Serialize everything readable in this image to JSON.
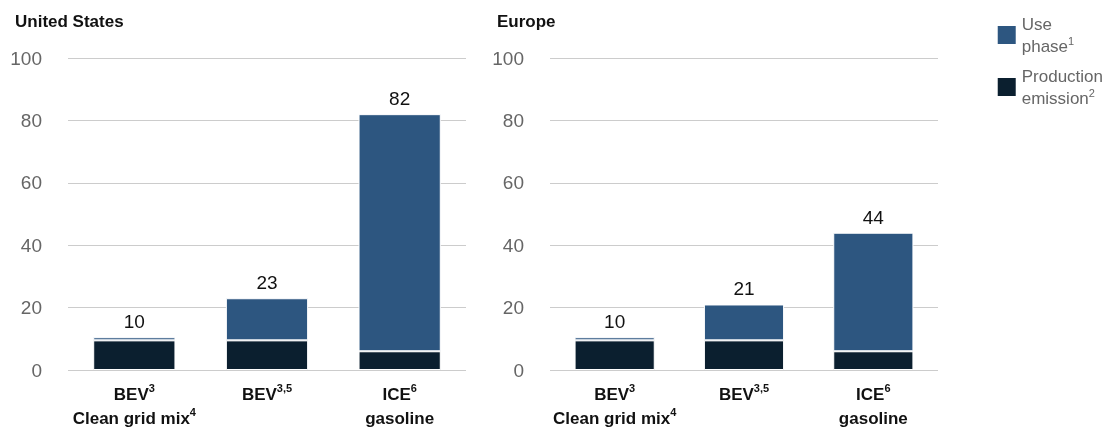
{
  "chart_data": [
    {
      "type": "bar",
      "title": "United States",
      "categories": [
        "BEV$^{3}$\nClean grid mix$^{4}$",
        "BEV$^{3,5}$",
        "ICE$^{6}$\ngasoline"
      ],
      "stacked": true,
      "series": [
        {
          "color": "#0b1f2f",
          "values": [
            9.5,
            9.5,
            6
          ]
        },
        {
          "color": "#2d5680",
          "values": [
            1,
            13.5,
            76
          ]
        }
      ],
      "totals": [
        "10",
        "23",
        "82"
      ],
      "ylim": [
        0,
        100
      ],
      "yticks": [
        0,
        20,
        40,
        60,
        80,
        100
      ],
      "grid": "y",
      "legend": false
    },
    {
      "type": "bar",
      "title": "Europe",
      "categories": [
        "BEV$^{3}$\nClean grid mix$^{4}$",
        "BEV$^{3,5}$",
        "ICE$^{6}$\ngasoline"
      ],
      "stacked": true,
      "series": [
        {
          "name": "Production emission$^{2}$",
          "color": "#0b1f2f",
          "values": [
            9.5,
            9.5,
            6
          ]
        },
        {
          "name": "Use phase$^{1}$",
          "color": "#2d5680",
          "values": [
            1,
            11.5,
            38
          ]
        }
      ],
      "totals": [
        "10",
        "21",
        "44"
      ],
      "ylim": [
        0,
        100
      ],
      "yticks": [
        0,
        20,
        40,
        60,
        80,
        100
      ],
      "grid": "y",
      "legend": "top right"
    }
  ]
}
